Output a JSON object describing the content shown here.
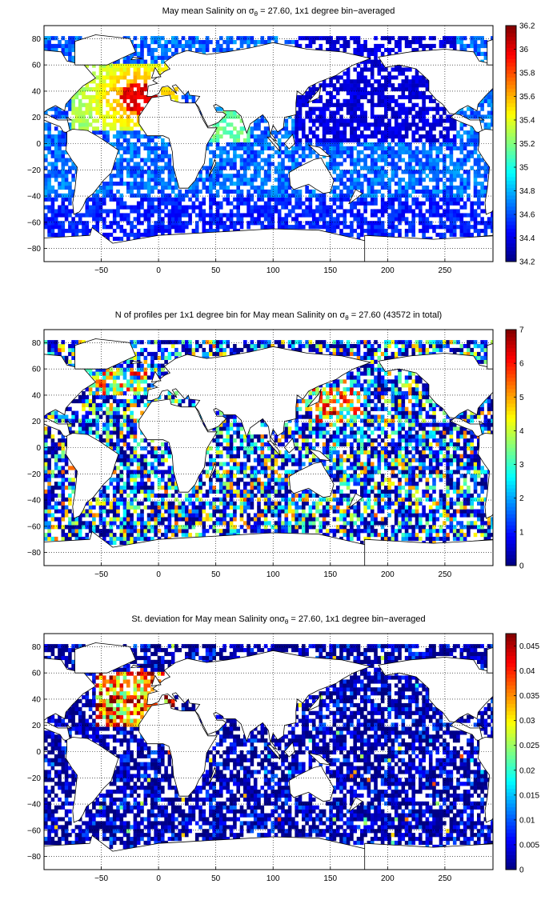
{
  "chart_data": [
    {
      "type": "heatmap",
      "title": {
        "prefix": "May mean Salinity on ",
        "sym": "σ",
        "sub": "θ",
        "suffix": " = 27.60, 1x1 degree bin−averaged"
      },
      "xlim": [
        -100,
        292
      ],
      "ylim": [
        -90,
        90
      ],
      "xticks": [
        -50,
        0,
        50,
        100,
        150,
        200,
        250
      ],
      "yticks": [
        80,
        60,
        40,
        20,
        0,
        -20,
        -40,
        -60,
        -80
      ],
      "grid": true,
      "colormap": "jet",
      "clim": [
        34.2,
        36.2
      ],
      "colorbar_ticks": [
        "36.2",
        "36",
        "35.8",
        "35.6",
        "35.4",
        "35.2",
        "35",
        "34.8",
        "34.6",
        "34.4",
        "34.2"
      ],
      "colorbar_values": [
        36.2,
        36.0,
        35.8,
        35.6,
        35.4,
        35.2,
        35.0,
        34.8,
        34.6,
        34.4,
        34.2
      ]
    },
    {
      "type": "heatmap",
      "title": {
        "prefix": "N of profiles per 1x1 degree bin for May mean Salinity on ",
        "sym": "σ",
        "sub": "θ",
        "suffix": " = 27.60 (43572 in total)"
      },
      "xlim": [
        -100,
        292
      ],
      "ylim": [
        -90,
        90
      ],
      "xticks": [
        -50,
        0,
        50,
        100,
        150,
        200,
        250
      ],
      "yticks": [
        80,
        60,
        40,
        20,
        0,
        -20,
        -40,
        -60,
        -80
      ],
      "grid": true,
      "colormap": "jet",
      "clim": [
        0,
        7
      ],
      "colorbar_ticks": [
        "7",
        "6",
        "5",
        "4",
        "3",
        "2",
        "1",
        "0"
      ],
      "colorbar_values": [
        7,
        6,
        5,
        4,
        3,
        2,
        1,
        0
      ]
    },
    {
      "type": "heatmap",
      "title": {
        "prefix": "St. deviation for May mean Salinity on",
        "sym": "σ",
        "sub": "θ",
        "suffix": " = 27.60, 1x1 degree bin−averaged"
      },
      "xlim": [
        -100,
        292
      ],
      "ylim": [
        -90,
        90
      ],
      "xticks": [
        -50,
        0,
        50,
        100,
        150,
        200,
        250
      ],
      "yticks": [
        80,
        60,
        40,
        20,
        0,
        -20,
        -40,
        -60,
        -80
      ],
      "grid": true,
      "colormap": "jet",
      "clim": [
        0,
        0.0475
      ],
      "colorbar_ticks": [
        "0.045",
        "0.04",
        "0.035",
        "0.03",
        "0.025",
        "0.02",
        "0.015",
        "0.01",
        "0.005",
        "0"
      ],
      "colorbar_values": [
        0.045,
        0.04,
        0.035,
        0.03,
        0.025,
        0.02,
        0.015,
        0.01,
        0.005,
        0
      ]
    }
  ]
}
